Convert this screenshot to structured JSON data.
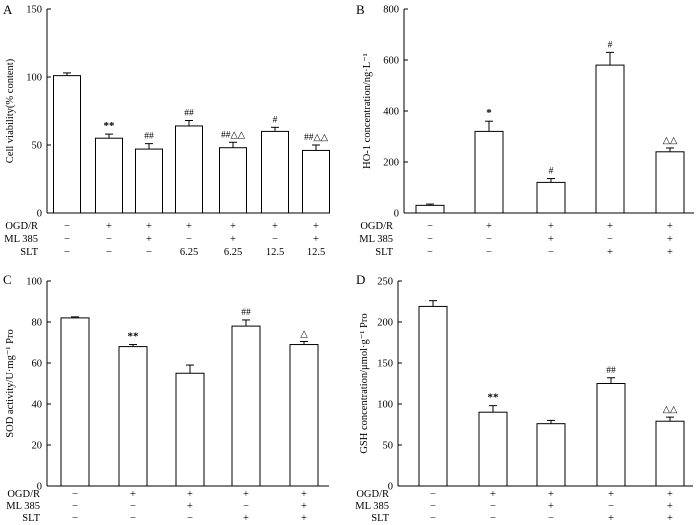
{
  "chart_data": [
    {
      "panel": "A",
      "type": "bar",
      "ylabel": "Cell viability(% content)",
      "ylim": [
        0,
        150
      ],
      "yticks": [
        0,
        50,
        100,
        150
      ],
      "values": [
        101,
        55,
        47,
        64,
        48,
        60,
        46
      ],
      "errors": [
        2,
        3,
        4,
        4,
        4,
        3,
        4
      ],
      "annotations": [
        "",
        "**",
        "##",
        "##",
        "##△△",
        "#",
        "##△△"
      ],
      "rows": [
        {
          "label": "OGD/R",
          "values": [
            "−",
            "+",
            "+",
            "+",
            "+",
            "+",
            "+"
          ]
        },
        {
          "label": "ML 385",
          "values": [
            "−",
            "−",
            "+",
            "−",
            "+",
            "−",
            "+"
          ]
        },
        {
          "label": "SLT",
          "values": [
            "−",
            "−",
            "−",
            "6.25",
            "6.25",
            "12.5",
            "12.5"
          ]
        }
      ]
    },
    {
      "panel": "B",
      "type": "bar",
      "ylabel": "HO-1 concentration/ng·L⁻¹",
      "ylim": [
        0,
        800
      ],
      "yticks": [
        0,
        200,
        400,
        600,
        800
      ],
      "values": [
        30,
        320,
        120,
        580,
        240
      ],
      "errors": [
        5,
        40,
        15,
        50,
        15
      ],
      "annotations": [
        "",
        "*",
        "#",
        "#",
        "△△"
      ],
      "rows": [
        {
          "label": "OGD/R",
          "values": [
            "−",
            "+",
            "+",
            "+",
            "+"
          ]
        },
        {
          "label": "ML 385",
          "values": [
            "−",
            "−",
            "+",
            "−",
            "+"
          ]
        },
        {
          "label": "SLT",
          "values": [
            "−",
            "−",
            "−",
            "+",
            "+"
          ]
        }
      ]
    },
    {
      "panel": "C",
      "type": "bar",
      "ylabel": "SOD activity/U·mg⁻¹ Pro",
      "ylim": [
        0,
        100
      ],
      "yticks": [
        0,
        20,
        40,
        60,
        80,
        100
      ],
      "values": [
        82,
        68,
        55,
        78,
        69
      ],
      "errors": [
        0.5,
        1,
        4,
        3,
        1.5
      ],
      "annotations": [
        "",
        "**",
        "",
        "##",
        "△"
      ],
      "rows": [
        {
          "label": "OGD/R",
          "values": [
            "−",
            "+",
            "+",
            "+",
            "+"
          ]
        },
        {
          "label": "ML 385",
          "values": [
            "−",
            "−",
            "+",
            "−",
            "+"
          ]
        },
        {
          "label": "SLT",
          "values": [
            "−",
            "−",
            "−",
            "+",
            "+"
          ]
        }
      ]
    },
    {
      "panel": "D",
      "type": "bar",
      "ylabel": "GSH concentration/μmol·g⁻¹ Pro",
      "ylim": [
        0,
        250
      ],
      "yticks": [
        0,
        50,
        100,
        150,
        200,
        250
      ],
      "values": [
        219,
        90,
        76,
        125,
        79
      ],
      "errors": [
        7,
        8,
        4,
        7,
        5
      ],
      "annotations": [
        "",
        "**",
        "",
        "##",
        "△△"
      ],
      "rows": [
        {
          "label": "OGD/R",
          "values": [
            "−",
            "+",
            "+",
            "+",
            "+"
          ]
        },
        {
          "label": "ML 385",
          "values": [
            "−",
            "−",
            "+",
            "−",
            "+"
          ]
        },
        {
          "label": "SLT",
          "values": [
            "−",
            "−",
            "−",
            "+",
            "+"
          ]
        }
      ]
    }
  ]
}
